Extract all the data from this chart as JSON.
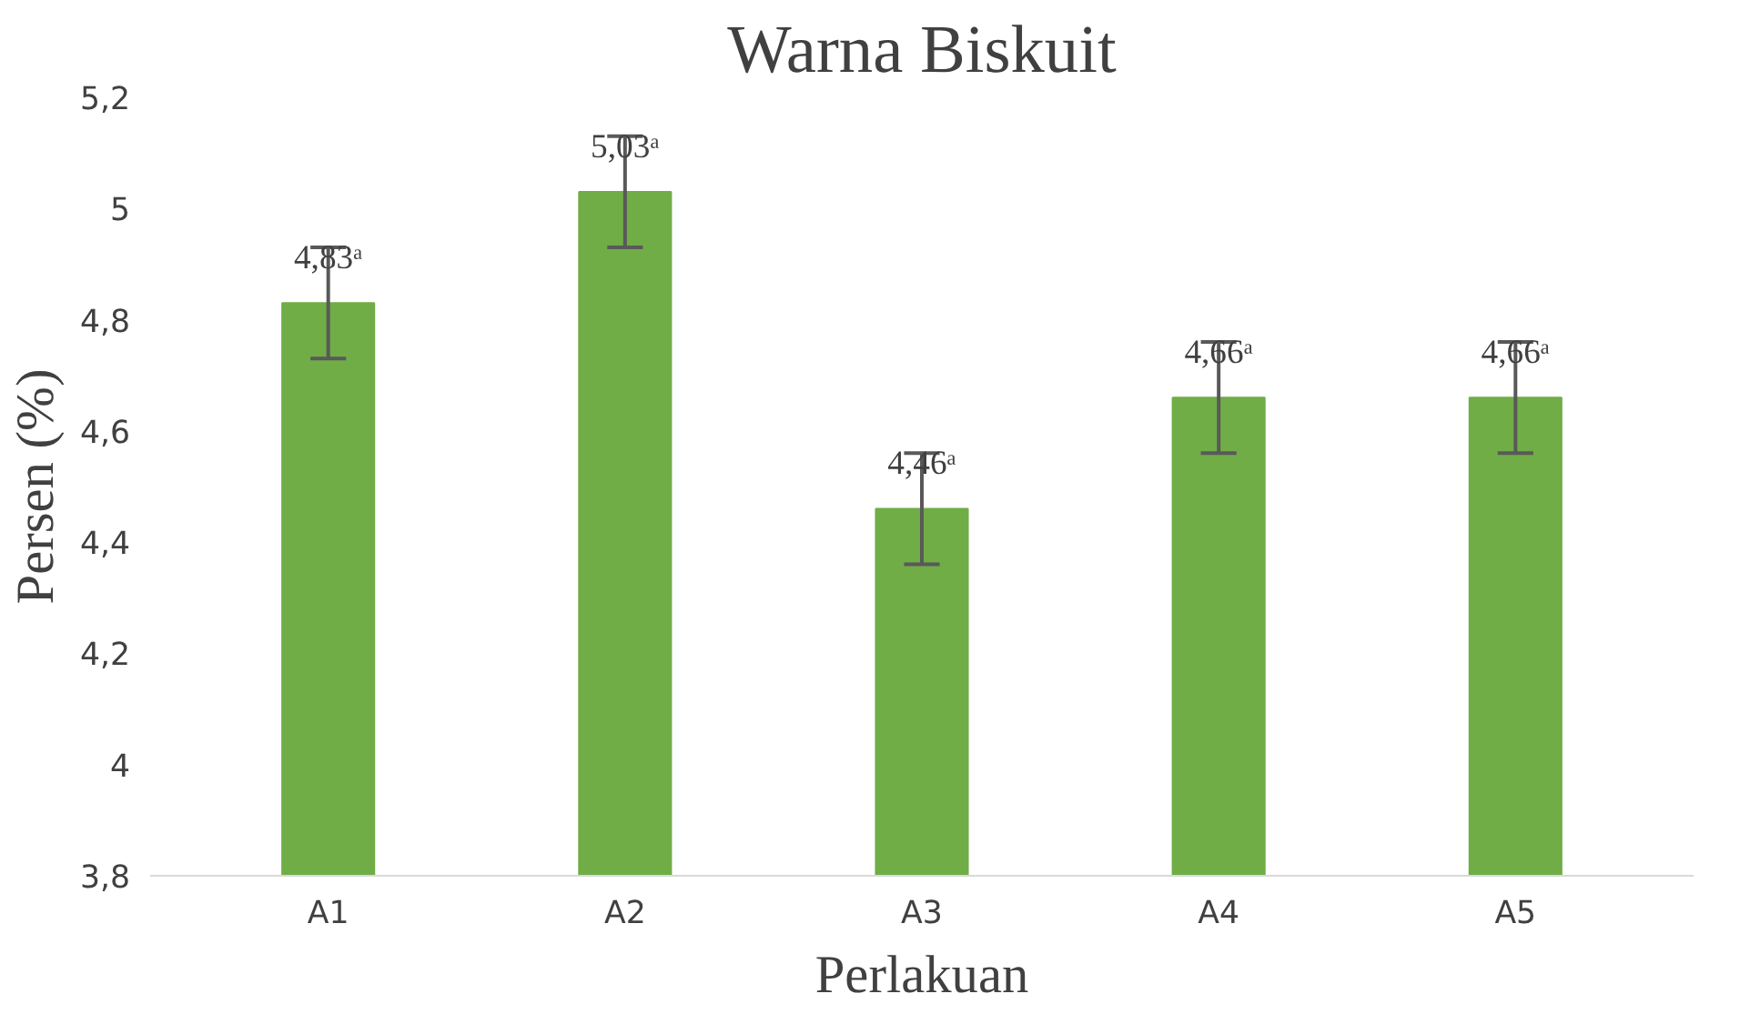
{
  "chart_data": {
    "type": "bar",
    "title": "Warna Biskuit",
    "xlabel": "Perlakuan",
    "ylabel": "Persen (%)",
    "categories": [
      "A1",
      "A2",
      "A3",
      "A4",
      "A5"
    ],
    "values": [
      4.83,
      5.03,
      4.46,
      4.66,
      4.66
    ],
    "color": "#70ad47",
    "errors": [
      0.1,
      0.1,
      0.1,
      0.1,
      0.1
    ],
    "value_labels": [
      "4,83ᵃ",
      "5,03ᵃ",
      "4,46ᵃ",
      "4,66ᵃ",
      "4,66ᵃ"
    ],
    "ylim": [
      3.8,
      5.2
    ],
    "yticks": [
      {
        "value": 3.8,
        "label": "3,8"
      },
      {
        "value": 4,
        "label": "4"
      },
      {
        "value": 4.2,
        "label": "4,2"
      },
      {
        "value": 4.4,
        "label": "4,4"
      },
      {
        "value": 4.6,
        "label": "4,6"
      },
      {
        "value": 4.8,
        "label": "4,8"
      },
      {
        "value": 5,
        "label": "5"
      },
      {
        "value": 5.2,
        "label": "5,2"
      }
    ],
    "grid": false
  }
}
